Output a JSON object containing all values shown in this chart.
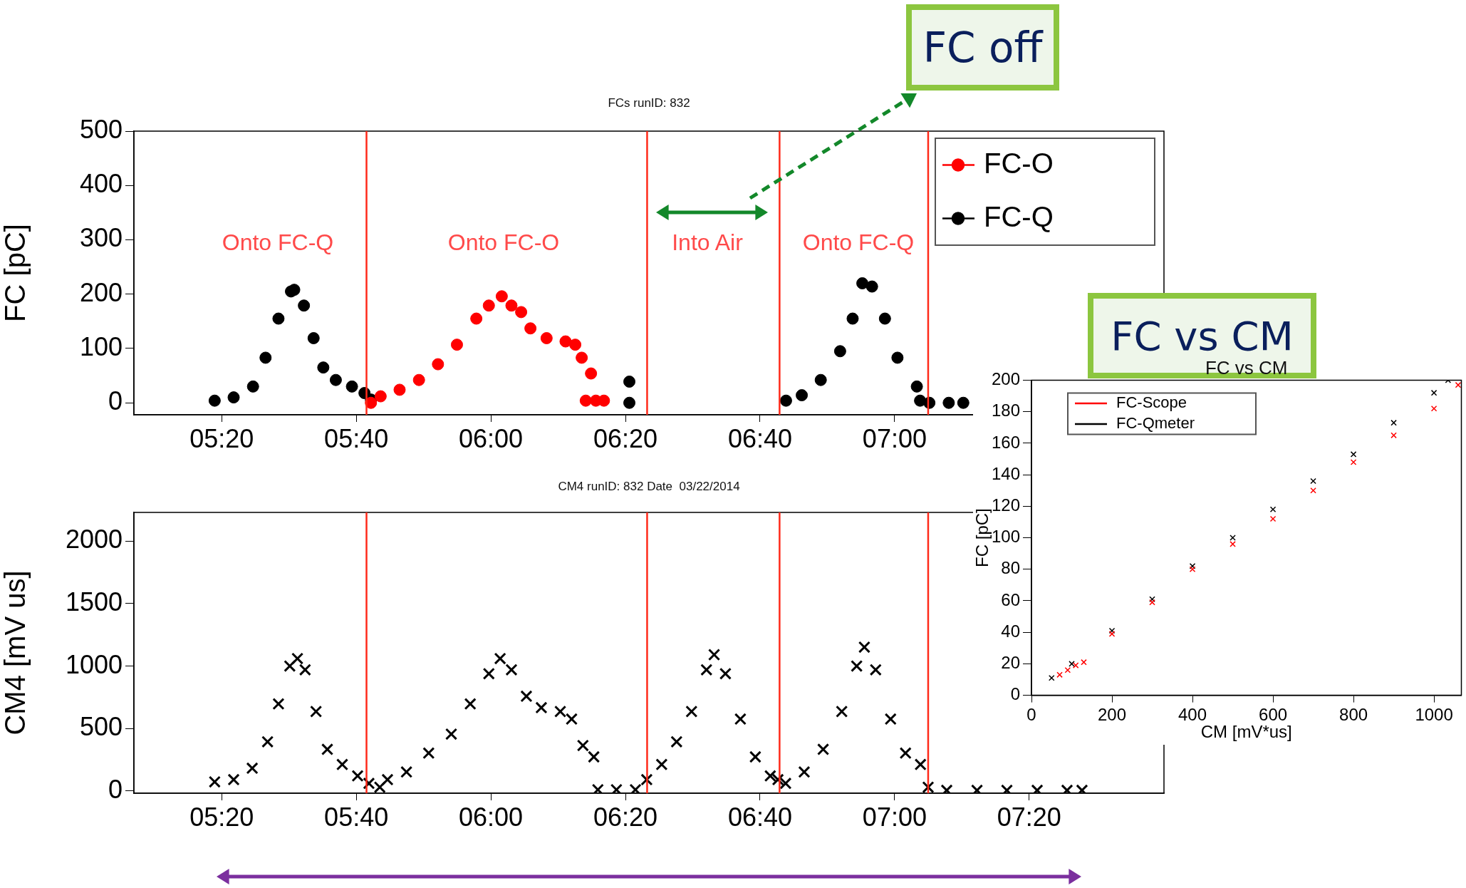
{
  "chart_data": [
    {
      "type": "scatter",
      "title": "FCs runID: 832",
      "ylabel": "FC [pC]",
      "xlim": [
        5.116,
        7.667
      ],
      "xticks": [
        {
          "value": 5.3333,
          "label": "05:20"
        },
        {
          "value": 5.6667,
          "label": "05:40"
        },
        {
          "value": 6,
          "label": "06:00"
        },
        {
          "value": 6.3333,
          "label": "06:20"
        },
        {
          "value": 6.6667,
          "label": "06:40"
        },
        {
          "value": 7,
          "label": "07:00"
        }
      ],
      "ylim": [
        -22,
        500
      ],
      "yticks": [
        0,
        100,
        200,
        300,
        400,
        500
      ],
      "grid": false,
      "legend": "top right",
      "marker": "circle",
      "ref_lines": [
        {
          "axis": "x",
          "value": 5.692,
          "color": "#ff2a1a"
        },
        {
          "axis": "x",
          "value": 6.387,
          "color": "#ff2a1a"
        },
        {
          "axis": "x",
          "value": 6.715,
          "color": "#ff2a1a"
        },
        {
          "axis": "x",
          "value": 7.083,
          "color": "#ff2a1a"
        }
      ],
      "annotations": [
        "Onto FC-Q",
        "Onto FC-O",
        "Into Air",
        "Onto FC-Q",
        "FC off"
      ],
      "series": [
        {
          "name": "FC-O",
          "color": "#ff0000",
          "x": [
            5.703,
            5.727,
            5.774,
            5.822,
            5.869,
            5.916,
            5.964,
            5.995,
            6.027,
            6.051,
            6.075,
            6.098,
            6.138,
            6.185,
            6.209,
            6.225,
            6.248,
            6.235,
            6.26,
            6.28
          ],
          "values": [
            0,
            12,
            24,
            42,
            71,
            107,
            155,
            179,
            196,
            179,
            167,
            137,
            119,
            113,
            107,
            83,
            54,
            4,
            4,
            4
          ]
        },
        {
          "name": "FC-Q",
          "color": "#000000",
          "x": [
            5.316,
            5.363,
            5.411,
            5.442,
            5.474,
            5.505,
            5.513,
            5.537,
            5.561,
            5.585,
            5.616,
            5.656,
            5.687,
            5.703,
            6.343,
            6.343,
            6.731,
            6.77,
            6.817,
            6.865,
            6.896,
            6.92,
            6.944,
            6.976,
            7.007,
            7.055,
            7.063,
            7.086,
            7.134,
            7.17
          ],
          "values": [
            4,
            10,
            30,
            83,
            155,
            205,
            208,
            179,
            119,
            65,
            42,
            30,
            18,
            6,
            39,
            0,
            4,
            14,
            42,
            95,
            155,
            220,
            214,
            155,
            83,
            30,
            4,
            0,
            0,
            0
          ]
        }
      ]
    },
    {
      "type": "scatter",
      "title": "CM4 runID: 832 Date  03/22/2014",
      "ylabel": "CM4 [mV us]",
      "xlim": [
        5.116,
        7.667
      ],
      "xticks": [
        {
          "value": 5.3333,
          "label": "05:20"
        },
        {
          "value": 5.6667,
          "label": "05:40"
        },
        {
          "value": 6,
          "label": "06:00"
        },
        {
          "value": 6.3333,
          "label": "06:20"
        },
        {
          "value": 6.6667,
          "label": "06:40"
        },
        {
          "value": 7,
          "label": "07:00"
        },
        {
          "value": 7.3333,
          "label": "07:20"
        }
      ],
      "ylim": [
        -18,
        2230
      ],
      "yticks": [
        0,
        500,
        1000,
        1500,
        2000
      ],
      "grid": false,
      "marker": "cross",
      "ref_lines": [
        {
          "axis": "x",
          "value": 5.692,
          "color": "#ff2a1a"
        },
        {
          "axis": "x",
          "value": 6.387,
          "color": "#ff2a1a"
        },
        {
          "axis": "x",
          "value": 6.715,
          "color": "#ff2a1a"
        },
        {
          "axis": "x",
          "value": 7.083,
          "color": "#ff2a1a"
        }
      ],
      "series": [
        {
          "color": "#000000",
          "x": [
            5.316,
            5.363,
            5.409,
            5.447,
            5.474,
            5.502,
            5.521,
            5.54,
            5.567,
            5.595,
            5.632,
            5.67,
            5.698,
            5.725,
            5.744,
            5.791,
            5.846,
            5.902,
            5.949,
            5.995,
            6.023,
            6.051,
            6.088,
            6.125,
            6.172,
            6.2,
            6.228,
            6.255,
            6.265,
            6.311,
            6.358,
            6.386,
            6.423,
            6.46,
            6.497,
            6.534,
            6.553,
            6.581,
            6.618,
            6.655,
            6.692,
            6.711,
            6.73,
            6.776,
            6.823,
            6.869,
            6.906,
            6.925,
            6.953,
            6.99,
            7.027,
            7.064,
            7.083,
            7.129,
            7.204,
            7.278,
            7.353,
            7.427,
            7.464
          ],
          "values": [
            73,
            91,
            182,
            394,
            697,
            1000,
            1060,
            970,
            636,
            333,
            212,
            121,
            61,
            30,
            91,
            152,
            303,
            455,
            697,
            939,
            1060,
            970,
            758,
            667,
            636,
            576,
            364,
            273,
            10,
            10,
            10,
            91,
            212,
            394,
            636,
            970,
            1091,
            939,
            576,
            273,
            121,
            91,
            61,
            152,
            333,
            636,
            1000,
            1151,
            970,
            576,
            303,
            212,
            30,
            5,
            5,
            5,
            5,
            5,
            5
          ]
        }
      ]
    },
    {
      "type": "scatter",
      "title": "FC vs CM",
      "xlabel": "CM [mV*us]",
      "ylabel": "FC [pC]",
      "xlim": [
        0,
        1068
      ],
      "xticks": [
        0,
        200,
        400,
        600,
        800,
        1000
      ],
      "ylim": [
        0,
        200
      ],
      "yticks": [
        0,
        20,
        40,
        60,
        80,
        100,
        120,
        140,
        160,
        180,
        200
      ],
      "grid": false,
      "legend": "top left",
      "marker": "cross",
      "annotations": [
        "FC vs CM"
      ],
      "series": [
        {
          "name": "FC-Scope",
          "color": "#ff0000",
          "x": [
            70,
            90,
            110,
            130,
            200,
            300,
            400,
            500,
            600,
            700,
            800,
            900,
            1000,
            1060
          ],
          "values": [
            13,
            16,
            19,
            21,
            39,
            59,
            80,
            96,
            112,
            130,
            148,
            165,
            182,
            197
          ]
        },
        {
          "name": "FC-Qmeter",
          "color": "#000000",
          "x": [
            50,
            100,
            200,
            300,
            400,
            500,
            600,
            700,
            800,
            900,
            1000,
            1035
          ],
          "values": [
            11,
            20,
            41,
            61,
            82,
            100,
            118,
            136,
            153,
            173,
            192,
            200
          ]
        }
      ]
    }
  ]
}
